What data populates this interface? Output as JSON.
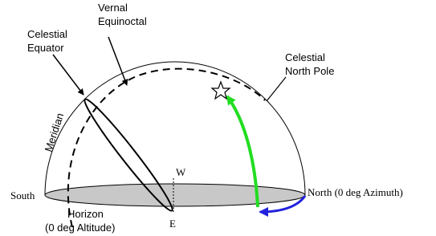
{
  "labels": {
    "vernal_equinoctal": [
      "Vernal",
      "Equinoctal"
    ],
    "celestial_equator": [
      "Celestial",
      "Equator"
    ],
    "celestial_north_pole": [
      "Celestial",
      "North Pole"
    ],
    "meridian": "Meridian",
    "west": "W",
    "east": "E",
    "south": "South",
    "north": "North (0 deg Azimuth)",
    "horizon": [
      "Horizon",
      "(0 deg Altitude)"
    ]
  }
}
